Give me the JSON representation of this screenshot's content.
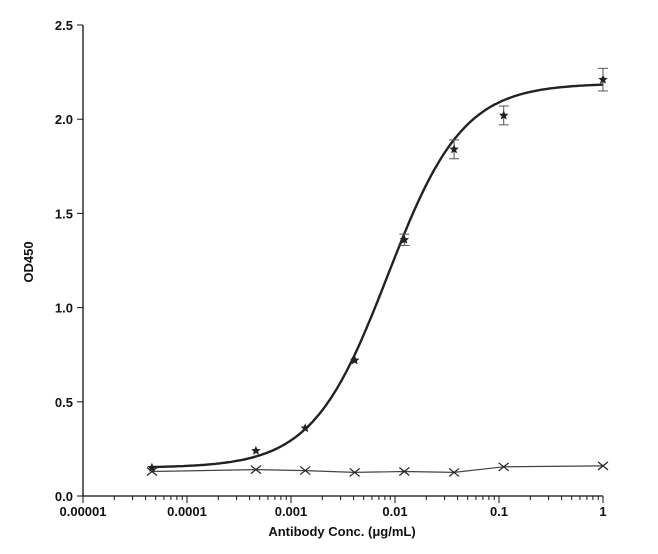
{
  "chart_data": {
    "type": "scatter",
    "title": "",
    "xlabel": "Antibody Conc. (μg/mL)",
    "ylabel": "OD450",
    "xscale": "log",
    "xlim": [
      1e-05,
      1
    ],
    "ylim": [
      0,
      2.5
    ],
    "xticks": [
      "0.00001",
      "0.0001",
      "0.001",
      "0.01",
      "0.1",
      "1"
    ],
    "yticks": [
      "0.0",
      "0.5",
      "1.0",
      "1.5",
      "2.0",
      "2.5"
    ],
    "grid": false,
    "legend": "none",
    "series": [
      {
        "marker": "star",
        "color": "#222222",
        "x": [
          4.6e-05,
          0.00046,
          0.00137,
          0.0041,
          0.0123,
          0.037,
          0.111,
          1
        ],
        "y": [
          0.15,
          0.24,
          0.36,
          0.72,
          1.36,
          1.84,
          2.02,
          2.21
        ],
        "error": [
          0,
          0,
          0,
          0,
          0.03,
          0.05,
          0.05,
          0.06
        ],
        "fit": {
          "model": "4PL",
          "bottom": 0.15,
          "top": 2.19,
          "ec50": 0.0085,
          "hill": 1.2
        }
      },
      {
        "marker": "x",
        "color": "#222222",
        "x": [
          4.6e-05,
          0.00046,
          0.00137,
          0.0041,
          0.0123,
          0.037,
          0.111,
          1
        ],
        "y": [
          0.13,
          0.14,
          0.135,
          0.125,
          0.13,
          0.125,
          0.155,
          0.16
        ]
      }
    ]
  }
}
